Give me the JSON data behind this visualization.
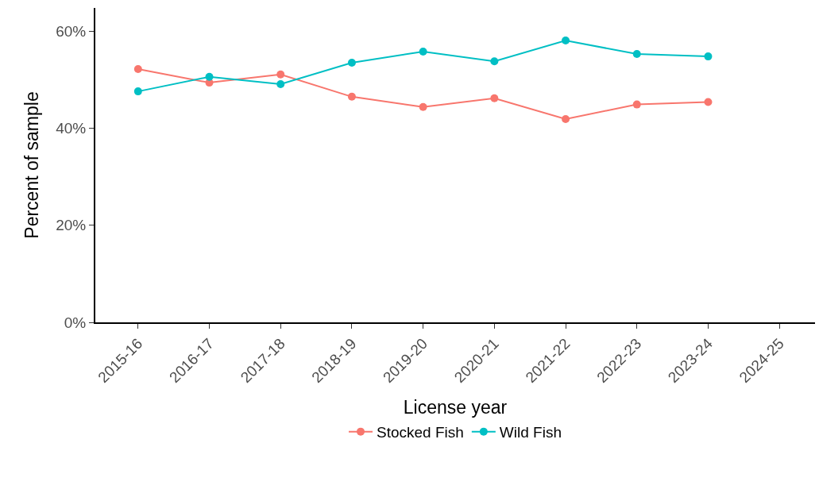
{
  "chart_data": {
    "type": "line",
    "xlabel": "License year",
    "ylabel": "Percent of sample",
    "categories": [
      "2015-16",
      "2016-17",
      "2017-18",
      "2018-19",
      "2019-20",
      "2020-21",
      "2021-22",
      "2022-23",
      "2023-24",
      "2024-25"
    ],
    "series": [
      {
        "name": "Stocked Fish",
        "color": "#f8766d",
        "values": [
          52.2,
          49.4,
          51.1,
          46.5,
          44.4,
          46.2,
          41.9,
          44.9,
          45.4,
          null
        ]
      },
      {
        "name": "Wild Fish",
        "color": "#00bfc4",
        "values": [
          47.6,
          50.6,
          49.1,
          53.5,
          55.8,
          53.8,
          58.1,
          55.3,
          54.8,
          null
        ]
      }
    ],
    "ylim": [
      0,
      64.8
    ],
    "yticks": [
      {
        "value": 0,
        "label": "0%"
      },
      {
        "value": 20,
        "label": "20%"
      },
      {
        "value": 40,
        "label": "40%"
      },
      {
        "value": 60,
        "label": "60%"
      }
    ],
    "grid": false,
    "legend": "bottom",
    "marker": "circle",
    "line_style": "solid"
  }
}
